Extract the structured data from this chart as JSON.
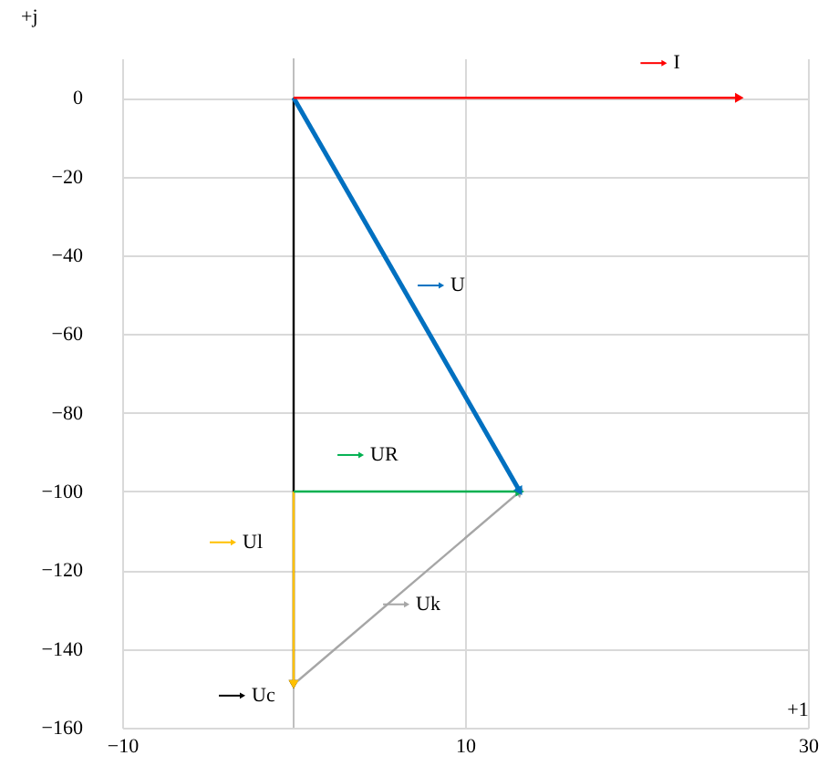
{
  "chart_data": {
    "type": "line",
    "xlabel": "+1",
    "ylabel": "+j",
    "xlim": [
      -10,
      30
    ],
    "xticks": [
      -10,
      10,
      30
    ],
    "ylim": [
      -160,
      10
    ],
    "yticks": [
      0,
      -20,
      -40,
      -60,
      -80,
      -100,
      -120,
      -140,
      -160
    ],
    "grid": true,
    "legend": "top right",
    "line_style": "solid",
    "ref_lines": [
      {
        "axis": "x",
        "value": 0,
        "color": "#bfbfbf"
      }
    ],
    "series": [
      {
        "name": "I",
        "color": "#ff0000",
        "x": [
          0,
          26
        ],
        "values": [
          0,
          0
        ]
      },
      {
        "name": "U",
        "color": "#0070c0",
        "x": [
          0,
          13.2
        ],
        "values": [
          0,
          -100
        ]
      },
      {
        "name": "UR",
        "color": "#00b050",
        "x": [
          0,
          13.2
        ],
        "values": [
          -100,
          -100
        ]
      },
      {
        "name": "Ul",
        "color": "#ffc000",
        "x": [
          0,
          0
        ],
        "values": [
          -100,
          -149
        ]
      },
      {
        "name": "Uk",
        "color": "#a6a6a6",
        "x": [
          0,
          13.2
        ],
        "values": [
          -149,
          -100
        ]
      },
      {
        "name": "Uc",
        "color": "#000000",
        "x": [
          0,
          0
        ],
        "values": [
          0,
          -149
        ]
      }
    ]
  }
}
